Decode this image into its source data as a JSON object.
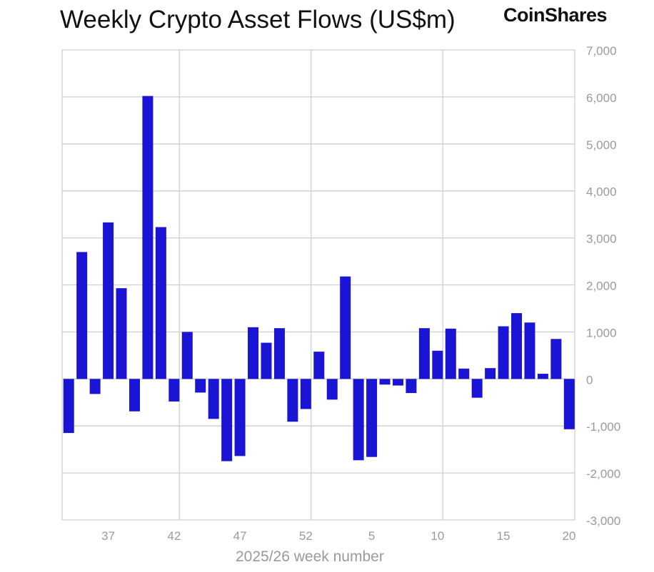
{
  "header": {
    "title": "Weekly Crypto Asset Flows (US$m)",
    "brand": "CoinShares"
  },
  "colors": {
    "bar": "#1a14d4",
    "grid": "#cfcfcf",
    "tick_text": "#9a9a9a"
  },
  "chart_data": {
    "type": "bar",
    "title": "Weekly Crypto Asset Flows (US$m)",
    "xlabel": "2025/26 week number",
    "ylabel": "",
    "ylim": [
      -3000,
      7000
    ],
    "y_ticks": [
      -3000,
      -2000,
      -1000,
      0,
      1000,
      2000,
      3000,
      4000,
      5000,
      6000,
      7000
    ],
    "y_tick_labels": [
      "-3,000",
      "-2,000",
      "-1,000",
      "0",
      "1,000",
      "2,000",
      "3,000",
      "4,000",
      "5,000",
      "6,000",
      "7,000"
    ],
    "y_axis_side": "right",
    "grid": true,
    "categories": [
      "34",
      "35",
      "36",
      "37",
      "38",
      "39",
      "40",
      "41",
      "42",
      "43",
      "44",
      "45",
      "46",
      "47",
      "48",
      "49",
      "50",
      "51",
      "52",
      "1",
      "2",
      "3",
      "4",
      "5",
      "6",
      "7",
      "8",
      "9",
      "10",
      "11",
      "12",
      "13",
      "14",
      "15",
      "16",
      "17",
      "18",
      "19",
      "20"
    ],
    "x_tick_labels": [
      "37",
      "42",
      "47",
      "52",
      "5",
      "10",
      "15",
      "20"
    ],
    "values": [
      -1150,
      2700,
      -320,
      3330,
      1930,
      -690,
      6020,
      3230,
      -480,
      1000,
      -290,
      -850,
      -1750,
      -1640,
      1100,
      770,
      1080,
      -910,
      -640,
      580,
      -440,
      2180,
      -1730,
      -1660,
      -120,
      -140,
      -300,
      1080,
      600,
      1070,
      220,
      -400,
      230,
      1120,
      1400,
      1200,
      110,
      850,
      -1070
    ]
  }
}
